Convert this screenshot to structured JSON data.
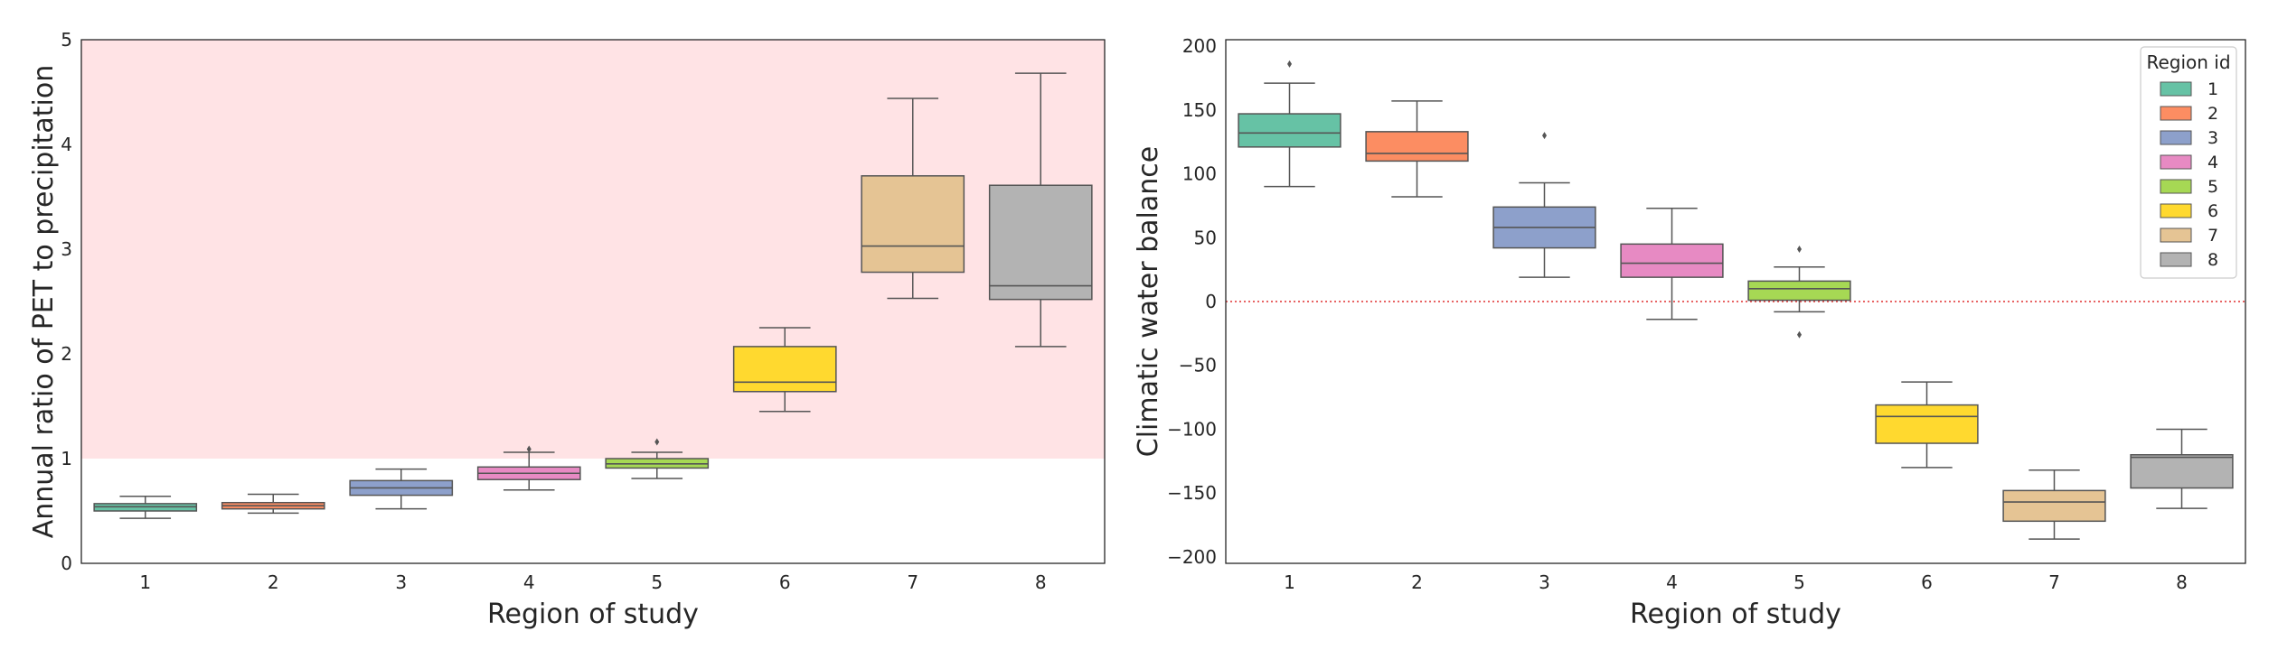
{
  "chart_data": [
    {
      "type": "box",
      "xlabel": "Region of study",
      "ylabel": "Annual ratio of PET to precipitation",
      "categories": [
        "1",
        "2",
        "3",
        "4",
        "5",
        "6",
        "7",
        "8"
      ],
      "ylim": [
        0,
        5
      ],
      "yticks": [
        "0",
        "1",
        "2",
        "3",
        "4",
        "5"
      ],
      "shaded_region": {
        "y_from": 1,
        "y_to": 5,
        "color": "#ffe3e5"
      },
      "grid": false,
      "boxes": [
        {
          "category": "1",
          "whisker_low": 0.43,
          "q1": 0.5,
          "median": 0.54,
          "q3": 0.57,
          "whisker_high": 0.64,
          "outliers": []
        },
        {
          "category": "2",
          "whisker_low": 0.48,
          "q1": 0.52,
          "median": 0.55,
          "q3": 0.58,
          "whisker_high": 0.66,
          "outliers": []
        },
        {
          "category": "3",
          "whisker_low": 0.52,
          "q1": 0.65,
          "median": 0.72,
          "q3": 0.79,
          "whisker_high": 0.9,
          "outliers": []
        },
        {
          "category": "4",
          "whisker_low": 0.7,
          "q1": 0.8,
          "median": 0.86,
          "q3": 0.92,
          "whisker_high": 1.06,
          "outliers": [
            1.09
          ]
        },
        {
          "category": "5",
          "whisker_low": 0.81,
          "q1": 0.91,
          "median": 0.95,
          "q3": 1.0,
          "whisker_high": 1.06,
          "outliers": [
            1.16
          ]
        },
        {
          "category": "6",
          "whisker_low": 1.45,
          "q1": 1.64,
          "median": 1.73,
          "q3": 2.07,
          "whisker_high": 2.25,
          "outliers": []
        },
        {
          "category": "7",
          "whisker_low": 2.53,
          "q1": 2.78,
          "median": 3.03,
          "q3": 3.7,
          "whisker_high": 4.44,
          "outliers": []
        },
        {
          "category": "8",
          "whisker_low": 2.07,
          "q1": 2.52,
          "median": 2.65,
          "q3": 3.61,
          "whisker_high": 4.68,
          "outliers": []
        }
      ]
    },
    {
      "type": "box",
      "xlabel": "Region of study",
      "ylabel": "Climatic water balance",
      "categories": [
        "1",
        "2",
        "3",
        "4",
        "5",
        "6",
        "7",
        "8"
      ],
      "ylim": [
        -205,
        205
      ],
      "yticks": [
        "200",
        "150",
        "100",
        "50",
        "0",
        "−50",
        "−100",
        "−150",
        "−200"
      ],
      "reference_line": {
        "y": 0,
        "style": "dotted",
        "color": "#e03030"
      },
      "grid": false,
      "legend": {
        "title": "Region id",
        "placement": "top-right",
        "entries": [
          "1",
          "2",
          "3",
          "4",
          "5",
          "6",
          "7",
          "8"
        ]
      },
      "boxes": [
        {
          "category": "1",
          "whisker_low": 90,
          "q1": 121,
          "median": 132,
          "q3": 147,
          "whisker_high": 171,
          "outliers": [
            186
          ]
        },
        {
          "category": "2",
          "whisker_low": 82,
          "q1": 110,
          "median": 116,
          "q3": 133,
          "whisker_high": 157,
          "outliers": []
        },
        {
          "category": "3",
          "whisker_low": 19,
          "q1": 42,
          "median": 58,
          "q3": 74,
          "whisker_high": 93,
          "outliers": [
            130
          ]
        },
        {
          "category": "4",
          "whisker_low": -14,
          "q1": 19,
          "median": 30,
          "q3": 45,
          "whisker_high": 73,
          "outliers": []
        },
        {
          "category": "5",
          "whisker_low": -8,
          "q1": 1,
          "median": 10,
          "q3": 16,
          "whisker_high": 27,
          "outliers": [
            41,
            -26
          ]
        },
        {
          "category": "6",
          "whisker_low": -130,
          "q1": -111,
          "median": -90,
          "q3": -81,
          "whisker_high": -63,
          "outliers": []
        },
        {
          "category": "7",
          "whisker_low": -186,
          "q1": -172,
          "median": -157,
          "q3": -148,
          "whisker_high": -132,
          "outliers": []
        },
        {
          "category": "8",
          "whisker_low": -162,
          "q1": -146,
          "median": -122,
          "q3": -120,
          "whisker_high": -100,
          "outliers": []
        }
      ]
    }
  ],
  "palette": [
    "#66c2a5",
    "#fc8d62",
    "#8da0cb",
    "#e78ac3",
    "#a6d854",
    "#ffd92f",
    "#e5c494",
    "#b3b3b3"
  ]
}
